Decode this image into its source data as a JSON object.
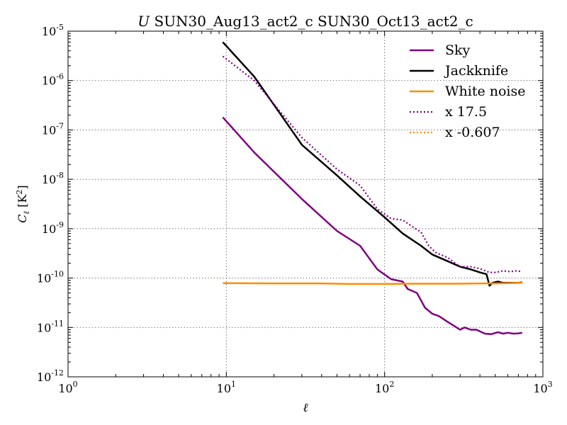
{
  "chart_data": {
    "type": "line",
    "title": {
      "prefix": "U",
      "text": "SUN30_Aug13_act2_c SUN30_Oct13_act2_c"
    },
    "xlabel": "ℓ",
    "ylabel": {
      "main": "C",
      "sub": "ℓ",
      "unit": "[K",
      "unit_sup": "2",
      "unit_end": "]"
    },
    "xscale": "log",
    "yscale": "log",
    "xlim": [
      1,
      1000
    ],
    "ylim": [
      1e-12,
      1e-05
    ],
    "grid": true,
    "legend_position": "top-right",
    "x_ticks": [
      {
        "value": 1,
        "base": "10",
        "exp": "0"
      },
      {
        "value": 10,
        "base": "10",
        "exp": "1"
      },
      {
        "value": 100,
        "base": "10",
        "exp": "2"
      },
      {
        "value": 1000,
        "base": "10",
        "exp": "3"
      }
    ],
    "y_ticks": [
      {
        "value": 1e-12,
        "base": "10",
        "exp": "-12"
      },
      {
        "value": 1e-11,
        "base": "10",
        "exp": "-11"
      },
      {
        "value": 1e-10,
        "base": "10",
        "exp": "-10"
      },
      {
        "value": 1e-09,
        "base": "10",
        "exp": "-9"
      },
      {
        "value": 1e-08,
        "base": "10",
        "exp": "-8"
      },
      {
        "value": 1e-07,
        "base": "10",
        "exp": "-7"
      },
      {
        "value": 1e-06,
        "base": "10",
        "exp": "-6"
      },
      {
        "value": 1e-05,
        "base": "10",
        "exp": "-5"
      }
    ],
    "series": [
      {
        "name": "Sky",
        "color": "#800080",
        "style": "solid",
        "points": [
          [
            9.5,
            1.8e-07
          ],
          [
            15,
            3.5e-08
          ],
          [
            30,
            4e-09
          ],
          [
            50,
            9e-10
          ],
          [
            70,
            4.5e-10
          ],
          [
            90,
            1.5e-10
          ],
          [
            110,
            9.5e-11
          ],
          [
            130,
            8.5e-11
          ],
          [
            140,
            6e-11
          ],
          [
            160,
            5e-11
          ],
          [
            180,
            2.5e-11
          ],
          [
            200,
            1.9e-11
          ],
          [
            220,
            1.7e-11
          ],
          [
            250,
            1.3e-11
          ],
          [
            300,
            9e-12
          ],
          [
            320,
            1e-11
          ],
          [
            350,
            9e-12
          ],
          [
            380,
            9e-12
          ],
          [
            430,
            7.5e-12
          ],
          [
            470,
            7.3e-12
          ],
          [
            520,
            8e-12
          ],
          [
            560,
            7.5e-12
          ],
          [
            600,
            7.8e-12
          ],
          [
            650,
            7.5e-12
          ],
          [
            700,
            7.6e-12
          ],
          [
            740,
            7.8e-12
          ]
        ]
      },
      {
        "name": "Jackknife",
        "color": "#000000",
        "style": "solid",
        "points": [
          [
            9.5,
            6e-06
          ],
          [
            15,
            1.2e-06
          ],
          [
            30,
            5e-08
          ],
          [
            50,
            1.2e-08
          ],
          [
            70,
            4.5e-09
          ],
          [
            100,
            1.7e-09
          ],
          [
            130,
            8e-10
          ],
          [
            170,
            4.5e-10
          ],
          [
            200,
            3e-10
          ],
          [
            250,
            2.2e-10
          ],
          [
            300,
            1.7e-10
          ],
          [
            350,
            1.5e-10
          ],
          [
            400,
            1.3e-10
          ],
          [
            440,
            1.2e-10
          ],
          [
            460,
            7e-11
          ],
          [
            480,
            8e-11
          ],
          [
            520,
            8.5e-11
          ],
          [
            560,
            8e-11
          ],
          [
            600,
            8e-11
          ],
          [
            650,
            8e-11
          ],
          [
            700,
            8e-11
          ],
          [
            740,
            8.2e-11
          ]
        ]
      },
      {
        "name": "White noise",
        "color": "#ff8c00",
        "style": "solid",
        "points": [
          [
            9.5,
            7.9e-11
          ],
          [
            20,
            7.8e-11
          ],
          [
            40,
            7.8e-11
          ],
          [
            60,
            7.6e-11
          ],
          [
            100,
            7.6e-11
          ],
          [
            150,
            7.7e-11
          ],
          [
            200,
            7.7e-11
          ],
          [
            300,
            7.7e-11
          ],
          [
            400,
            7.8e-11
          ],
          [
            500,
            7.8e-11
          ],
          [
            600,
            7.9e-11
          ],
          [
            740,
            8e-11
          ]
        ]
      },
      {
        "name": "x 17.5",
        "color": "#800080",
        "style": "dotted",
        "points": [
          [
            9.5,
            3.1e-06
          ],
          [
            15,
            1e-06
          ],
          [
            30,
            7e-08
          ],
          [
            50,
            1.6e-08
          ],
          [
            70,
            7.5e-09
          ],
          [
            90,
            2.5e-09
          ],
          [
            110,
            1.6e-09
          ],
          [
            130,
            1.5e-09
          ],
          [
            150,
            1.1e-09
          ],
          [
            170,
            8.5e-10
          ],
          [
            190,
            4.5e-10
          ],
          [
            210,
            3.3e-10
          ],
          [
            250,
            2.6e-10
          ],
          [
            300,
            1.7e-10
          ],
          [
            350,
            1.7e-10
          ],
          [
            400,
            1.55e-10
          ],
          [
            460,
            1.3e-10
          ],
          [
            500,
            1.3e-10
          ],
          [
            560,
            1.4e-10
          ],
          [
            620,
            1.35e-10
          ],
          [
            680,
            1.4e-10
          ],
          [
            740,
            1.35e-10
          ]
        ]
      },
      {
        "name": "x -0.607",
        "color": "#ff8c00",
        "style": "dotted",
        "points": []
      }
    ]
  }
}
